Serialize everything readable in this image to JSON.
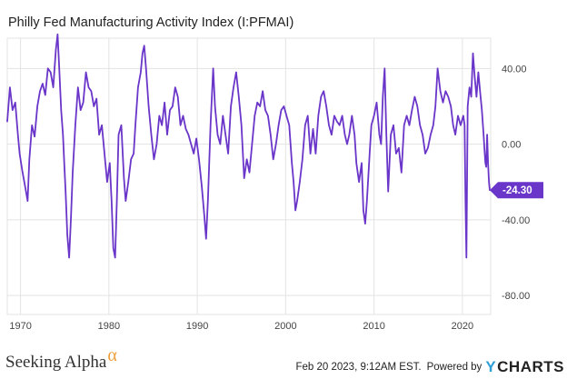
{
  "chart_title": "Philly Fed Manufacturing Activity Index (I:PFMAI)",
  "footer": {
    "source": "Seeking Alpha",
    "source_mark": "α",
    "timestamp": "Feb 20 2023, 9:12AM EST.",
    "powered_by": "Powered by",
    "brand_mark": "Y",
    "brand": "CHARTS"
  },
  "colors": {
    "line": "#6a35c9",
    "grid": "#e3e3e3",
    "axis_text": "#444444",
    "callout_bg": "#6a35c9",
    "callout_text": "#ffffff"
  },
  "chart_data": {
    "type": "line",
    "title": "Philly Fed Manufacturing Activity Index (I:PFMAI)",
    "xlabel": "",
    "ylabel": "",
    "xlim": [
      1968.5,
      2023.2
    ],
    "ylim": [
      -90,
      56
    ],
    "x_ticks": [
      1970,
      1980,
      1990,
      2000,
      2010,
      2020
    ],
    "y_ticks": [
      40,
      0,
      -40,
      -80
    ],
    "y_tick_labels": [
      "40.00",
      "0.00",
      "-40.00",
      "-80.00"
    ],
    "grid": true,
    "y_axis_side": "right",
    "last_value": -24.3,
    "last_value_label": "-24.30",
    "series": [
      {
        "values": [
          [
            1968.5,
            12
          ],
          [
            1968.8,
            30
          ],
          [
            1969.1,
            18
          ],
          [
            1969.4,
            22
          ],
          [
            1969.7,
            5
          ],
          [
            1969.9,
            -5
          ],
          [
            1970.2,
            -14
          ],
          [
            1970.5,
            -22
          ],
          [
            1970.8,
            -30
          ],
          [
            1971.0,
            -8
          ],
          [
            1971.3,
            10
          ],
          [
            1971.6,
            4
          ],
          [
            1971.9,
            20
          ],
          [
            1972.2,
            28
          ],
          [
            1972.5,
            32
          ],
          [
            1972.8,
            26
          ],
          [
            1973.1,
            40
          ],
          [
            1973.4,
            38
          ],
          [
            1973.7,
            30
          ],
          [
            1974.0,
            50
          ],
          [
            1974.2,
            58
          ],
          [
            1974.4,
            38
          ],
          [
            1974.6,
            18
          ],
          [
            1974.8,
            5
          ],
          [
            1974.95,
            -10
          ],
          [
            1975.1,
            -25
          ],
          [
            1975.3,
            -48
          ],
          [
            1975.5,
            -60
          ],
          [
            1975.7,
            -40
          ],
          [
            1975.9,
            -15
          ],
          [
            1976.2,
            10
          ],
          [
            1976.5,
            30
          ],
          [
            1976.8,
            18
          ],
          [
            1977.1,
            22
          ],
          [
            1977.4,
            38
          ],
          [
            1977.7,
            30
          ],
          [
            1978.0,
            28
          ],
          [
            1978.3,
            20
          ],
          [
            1978.6,
            24
          ],
          [
            1978.9,
            5
          ],
          [
            1979.2,
            10
          ],
          [
            1979.5,
            -5
          ],
          [
            1979.8,
            -20
          ],
          [
            1980.1,
            -10
          ],
          [
            1980.3,
            -30
          ],
          [
            1980.5,
            -55
          ],
          [
            1980.7,
            -60
          ],
          [
            1980.9,
            -30
          ],
          [
            1981.1,
            5
          ],
          [
            1981.4,
            10
          ],
          [
            1981.7,
            -18
          ],
          [
            1981.9,
            -30
          ],
          [
            1982.2,
            -20
          ],
          [
            1982.5,
            -8
          ],
          [
            1982.8,
            -5
          ],
          [
            1983.0,
            10
          ],
          [
            1983.3,
            30
          ],
          [
            1983.6,
            38
          ],
          [
            1983.8,
            48
          ],
          [
            1984.0,
            52
          ],
          [
            1984.2,
            40
          ],
          [
            1984.5,
            20
          ],
          [
            1984.8,
            5
          ],
          [
            1985.1,
            -8
          ],
          [
            1985.4,
            0
          ],
          [
            1985.7,
            15
          ],
          [
            1986.0,
            10
          ],
          [
            1986.3,
            22
          ],
          [
            1986.6,
            5
          ],
          [
            1986.9,
            18
          ],
          [
            1987.2,
            20
          ],
          [
            1987.5,
            30
          ],
          [
            1987.8,
            25
          ],
          [
            1988.1,
            10
          ],
          [
            1988.4,
            15
          ],
          [
            1988.7,
            8
          ],
          [
            1989.0,
            5
          ],
          [
            1989.3,
            0
          ],
          [
            1989.6,
            -5
          ],
          [
            1989.9,
            3
          ],
          [
            1990.2,
            -8
          ],
          [
            1990.5,
            -22
          ],
          [
            1990.8,
            -38
          ],
          [
            1991.0,
            -50
          ],
          [
            1991.2,
            -30
          ],
          [
            1991.5,
            10
          ],
          [
            1991.8,
            40
          ],
          [
            1992.0,
            20
          ],
          [
            1992.3,
            5
          ],
          [
            1992.6,
            0
          ],
          [
            1992.9,
            15
          ],
          [
            1993.2,
            5
          ],
          [
            1993.5,
            -5
          ],
          [
            1993.8,
            20
          ],
          [
            1994.1,
            30
          ],
          [
            1994.4,
            38
          ],
          [
            1994.7,
            25
          ],
          [
            1995.0,
            10
          ],
          [
            1995.3,
            -18
          ],
          [
            1995.6,
            -8
          ],
          [
            1995.9,
            -15
          ],
          [
            1996.2,
            0
          ],
          [
            1996.5,
            15
          ],
          [
            1996.8,
            22
          ],
          [
            1997.1,
            20
          ],
          [
            1997.4,
            28
          ],
          [
            1997.7,
            18
          ],
          [
            1998.0,
            15
          ],
          [
            1998.3,
            5
          ],
          [
            1998.6,
            -8
          ],
          [
            1998.9,
            0
          ],
          [
            1999.2,
            10
          ],
          [
            1999.5,
            18
          ],
          [
            1999.8,
            20
          ],
          [
            2000.1,
            15
          ],
          [
            2000.4,
            10
          ],
          [
            2000.7,
            -10
          ],
          [
            2000.9,
            -20
          ],
          [
            2001.1,
            -35
          ],
          [
            2001.3,
            -30
          ],
          [
            2001.6,
            -20
          ],
          [
            2001.9,
            -8
          ],
          [
            2002.2,
            10
          ],
          [
            2002.5,
            15
          ],
          [
            2002.8,
            -5
          ],
          [
            2003.1,
            8
          ],
          [
            2003.4,
            -5
          ],
          [
            2003.7,
            15
          ],
          [
            2004.0,
            25
          ],
          [
            2004.3,
            28
          ],
          [
            2004.6,
            20
          ],
          [
            2004.9,
            10
          ],
          [
            2005.2,
            5
          ],
          [
            2005.5,
            15
          ],
          [
            2005.8,
            12
          ],
          [
            2006.1,
            10
          ],
          [
            2006.4,
            15
          ],
          [
            2006.7,
            5
          ],
          [
            2006.95,
            0
          ],
          [
            2007.2,
            5
          ],
          [
            2007.5,
            15
          ],
          [
            2007.8,
            5
          ],
          [
            2008.0,
            -10
          ],
          [
            2008.3,
            -20
          ],
          [
            2008.6,
            -10
          ],
          [
            2008.8,
            -35
          ],
          [
            2009.0,
            -42
          ],
          [
            2009.2,
            -30
          ],
          [
            2009.5,
            -5
          ],
          [
            2009.7,
            10
          ],
          [
            2010.0,
            15
          ],
          [
            2010.3,
            22
          ],
          [
            2010.6,
            5
          ],
          [
            2010.8,
            0
          ],
          [
            2011.0,
            25
          ],
          [
            2011.2,
            40
          ],
          [
            2011.4,
            5
          ],
          [
            2011.6,
            -25
          ],
          [
            2011.9,
            5
          ],
          [
            2012.2,
            10
          ],
          [
            2012.5,
            -5
          ],
          [
            2012.8,
            -2
          ],
          [
            2013.1,
            -15
          ],
          [
            2013.4,
            10
          ],
          [
            2013.7,
            15
          ],
          [
            2014.0,
            10
          ],
          [
            2014.3,
            18
          ],
          [
            2014.6,
            25
          ],
          [
            2014.9,
            20
          ],
          [
            2015.2,
            10
          ],
          [
            2015.5,
            5
          ],
          [
            2015.8,
            -5
          ],
          [
            2016.1,
            -2
          ],
          [
            2016.4,
            5
          ],
          [
            2016.7,
            10
          ],
          [
            2016.95,
            20
          ],
          [
            2017.2,
            40
          ],
          [
            2017.5,
            28
          ],
          [
            2017.8,
            22
          ],
          [
            2018.1,
            28
          ],
          [
            2018.4,
            25
          ],
          [
            2018.7,
            20
          ],
          [
            2018.95,
            10
          ],
          [
            2019.2,
            5
          ],
          [
            2019.5,
            15
          ],
          [
            2019.8,
            10
          ],
          [
            2020.1,
            15
          ],
          [
            2020.25,
            10
          ],
          [
            2020.35,
            -30
          ],
          [
            2020.45,
            -60
          ],
          [
            2020.6,
            20
          ],
          [
            2020.8,
            30
          ],
          [
            2021.0,
            25
          ],
          [
            2021.2,
            48
          ],
          [
            2021.4,
            35
          ],
          [
            2021.6,
            25
          ],
          [
            2021.8,
            38
          ],
          [
            2022.0,
            28
          ],
          [
            2022.2,
            18
          ],
          [
            2022.4,
            5
          ],
          [
            2022.5,
            -3
          ],
          [
            2022.6,
            -10
          ],
          [
            2022.7,
            -12
          ],
          [
            2022.8,
            5
          ],
          [
            2022.9,
            -10
          ],
          [
            2023.0,
            -20
          ],
          [
            2023.1,
            -24.3
          ]
        ]
      }
    ]
  }
}
